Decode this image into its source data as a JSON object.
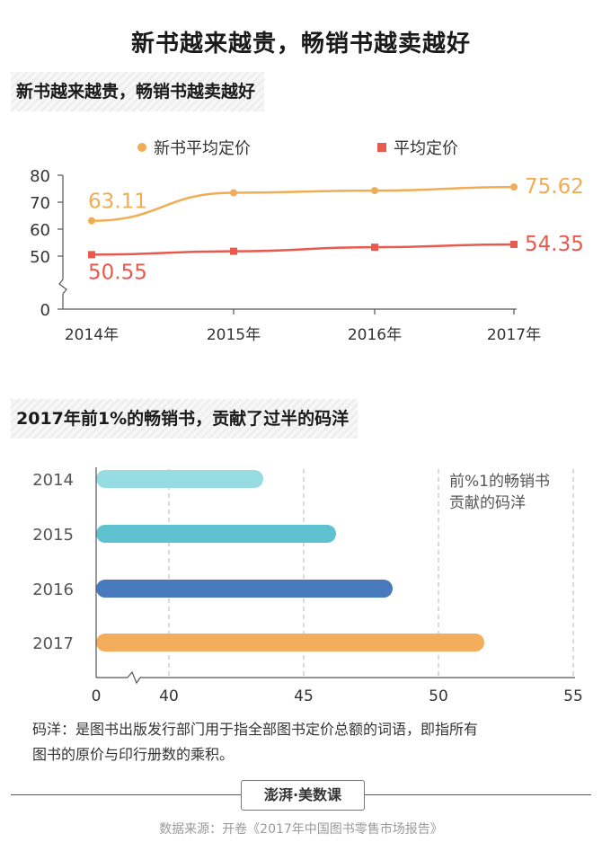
{
  "page": {
    "title": "新书越来越贵，畅销书越卖越好",
    "footnote_line1": "码洋：是图书出版发行部门用于指全部图书定价总额的词语，即指所有",
    "footnote_line2": "图书的原价与印行册数的乘积。",
    "logo_text": "澎湃·美数课",
    "source": "数据来源：开卷《2017年中国图书零售市场报告》"
  },
  "chart_data": [
    {
      "type": "line",
      "title": "新书越来越贵，畅销书越卖越好",
      "categories": [
        "2014年",
        "2015年",
        "2016年",
        "2017年"
      ],
      "series": [
        {
          "name": "新书平均定价",
          "values": [
            63.11,
            73.5,
            74.3,
            75.62
          ],
          "color": "#f0ad55"
        },
        {
          "name": "平均定价",
          "values": [
            50.55,
            51.8,
            53.3,
            54.35
          ],
          "color": "#e8594e"
        }
      ],
      "data_labels": {
        "新书平均定价": {
          "first": "63.11",
          "last": "75.62"
        },
        "平均定价": {
          "first": "50.55",
          "last": "54.35"
        }
      },
      "y_ticks": [
        "80",
        "70",
        "60",
        "50",
        "0"
      ],
      "ylim": [
        0,
        80
      ],
      "y_axis_break": "between 0 and 50",
      "legend_position": "top",
      "xlabel": "",
      "ylabel": ""
    },
    {
      "type": "bar",
      "orientation": "horizontal",
      "title": "2017年前1%的畅销书，贡献了过半的码洋",
      "categories": [
        "2014",
        "2015",
        "2016",
        "2017"
      ],
      "values": [
        43.5,
        46.2,
        48.3,
        51.7
      ],
      "colors": [
        "#97dbe3",
        "#5fc2d0",
        "#4a7abe",
        "#f3ad5c"
      ],
      "x_ticks": [
        "0",
        "40",
        "45",
        "50",
        "55"
      ],
      "xlim": [
        0,
        55
      ],
      "x_axis_break": "between 0 and 40",
      "annotation": [
        "前%1的畅销书",
        "贡献的码洋"
      ],
      "grid": "vertical dashed",
      "xlabel": "",
      "ylabel": ""
    }
  ]
}
